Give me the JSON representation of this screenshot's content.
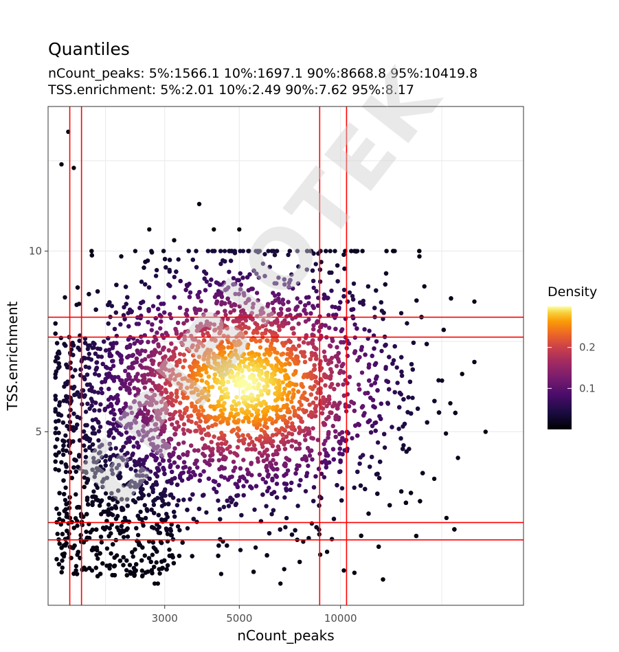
{
  "chart_data": {
    "type": "scatter",
    "title": "Quantiles",
    "subtitle_lines": [
      "nCount_peaks: 5%:1566.1 10%:1697.1 90%:8668.8 95%:10419.8",
      "TSS.enrichment: 5%:2.01 10%:2.49 90%:7.62 95%:8.17"
    ],
    "xlabel": "nCount_peaks",
    "ylabel": "TSS.enrichment",
    "x_scale": "log10",
    "xlim": [
      1350,
      35000
    ],
    "ylim": [
      0.2,
      14.0
    ],
    "x_ticks": [
      3000,
      5000,
      10000
    ],
    "x_tick_labels": [
      "3000",
      "5000",
      "10000"
    ],
    "y_ticks": [
      5,
      10
    ],
    "y_tick_labels": [
      "5",
      "10"
    ],
    "grid": true,
    "vertical_lines": [
      1566.1,
      1697.1,
      8668.8,
      10419.8
    ],
    "horizontal_lines": [
      2.01,
      2.49,
      7.62,
      8.17
    ],
    "line_color": "#ff0000",
    "density_center": {
      "x": 5200,
      "y": 6.3
    },
    "point_count": 5200,
    "highlighted_points": [
      {
        "x": 1550,
        "y": 13.3
      },
      {
        "x": 1480,
        "y": 12.4
      },
      {
        "x": 1610,
        "y": 12.3
      },
      {
        "x": 3800,
        "y": 11.3
      },
      {
        "x": 2700,
        "y": 10.6
      },
      {
        "x": 4200,
        "y": 10.6
      },
      {
        "x": 5000,
        "y": 10.6
      },
      {
        "x": 3200,
        "y": 10.3
      },
      {
        "x": 27000,
        "y": 5.0
      },
      {
        "x": 23000,
        "y": 6.6
      },
      {
        "x": 19000,
        "y": 3.7
      },
      {
        "x": 11000,
        "y": 1.1
      },
      {
        "x": 8700,
        "y": 1.6
      },
      {
        "x": 6800,
        "y": 1.2
      },
      {
        "x": 2800,
        "y": 0.8
      }
    ],
    "legend": {
      "title": "Density",
      "position": "right",
      "ticks": [
        0.1,
        0.2
      ],
      "tick_labels": [
        "0.1",
        "0.2"
      ],
      "range": [
        0.0,
        0.3
      ]
    },
    "colormap": "inferno",
    "watermark": "EPIBIOTEK"
  }
}
